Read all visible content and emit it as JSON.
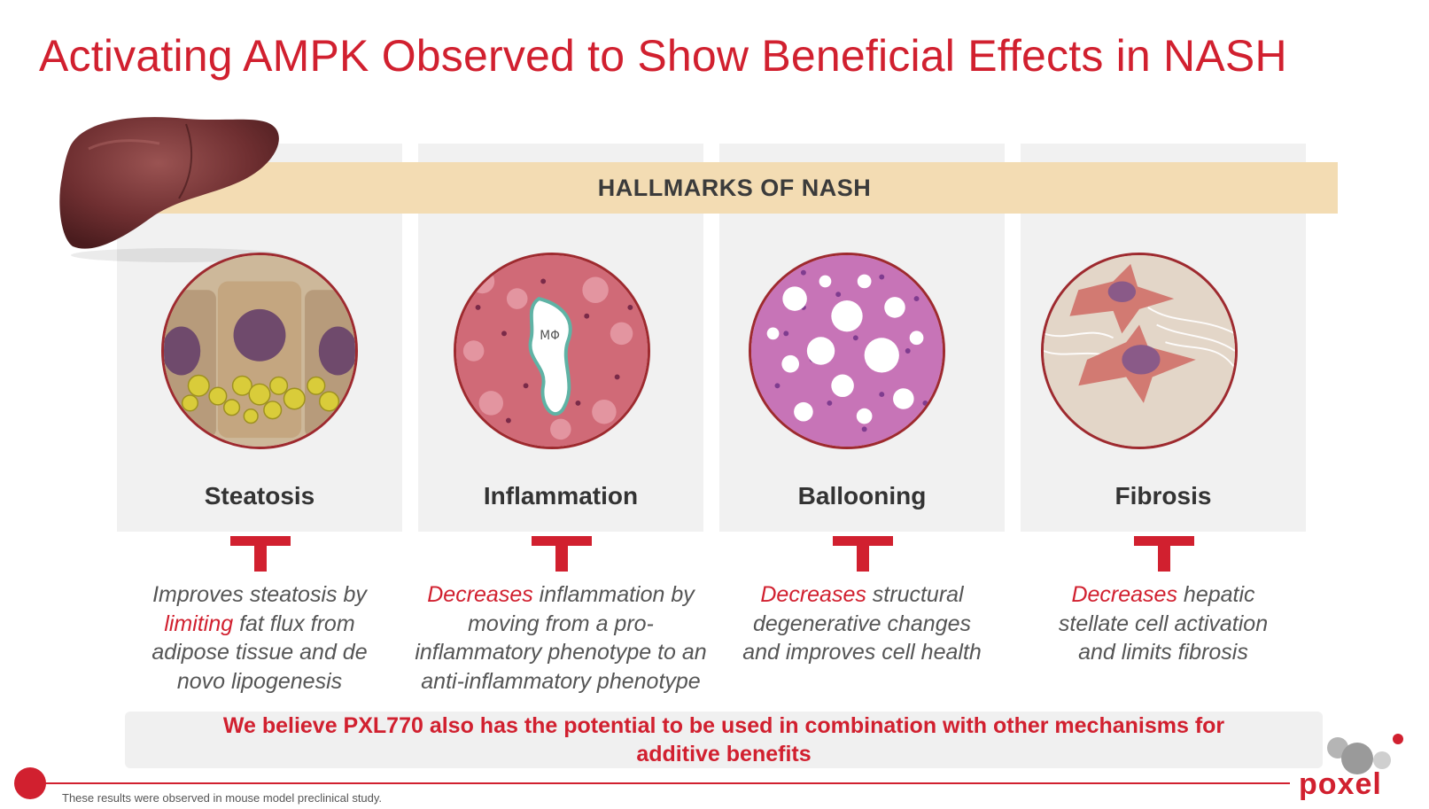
{
  "title": "Activating AMPK Observed to Show Beneficial Effects in NASH",
  "band_label": "HALLMARKS OF NASH",
  "hallmarks": [
    {
      "label": "Steatosis",
      "desc_lines": [
        [
          {
            "text": "Improves steatosis by",
            "hl": false
          }
        ],
        [
          {
            "text": "limiting",
            "hl": true
          },
          {
            "text": " fat flux from",
            "hl": false
          }
        ],
        [
          {
            "text": "adipose tissue and de",
            "hl": false
          }
        ],
        [
          {
            "text": "novo lipogenesis",
            "hl": false
          }
        ]
      ]
    },
    {
      "label": "Inflammation",
      "image_label": "MΦ",
      "desc_lines": [
        [
          {
            "text": "Decreases",
            "hl": true
          },
          {
            "text": " inflammation by",
            "hl": false
          }
        ],
        [
          {
            "text": "moving from a pro-",
            "hl": false
          }
        ],
        [
          {
            "text": "inflammatory phenotype to an",
            "hl": false
          }
        ],
        [
          {
            "text": "anti-inflammatory phenotype",
            "hl": false
          }
        ]
      ]
    },
    {
      "label": "Ballooning",
      "desc_lines": [
        [
          {
            "text": "Decreases",
            "hl": true
          },
          {
            "text": " structural",
            "hl": false
          }
        ],
        [
          {
            "text": "degenerative changes",
            "hl": false
          }
        ],
        [
          {
            "text": "and improves cell health",
            "hl": false
          }
        ]
      ]
    },
    {
      "label": "Fibrosis",
      "desc_lines": [
        [
          {
            "text": "Decreases",
            "hl": true
          },
          {
            "text": " hepatic",
            "hl": false
          }
        ],
        [
          {
            "text": "stellate cell activation",
            "hl": false
          }
        ],
        [
          {
            "text": "and limits fibrosis",
            "hl": false
          }
        ]
      ]
    }
  ],
  "note_lines": [
    "We believe PXL770 also has the potential to be used in combination with other mechanisms for",
    "additive benefits"
  ],
  "footnote": "These results were observed in mouse model preclinical study.",
  "logo_text": "poxel",
  "colors": {
    "accent": "#d1202f",
    "band": "#f3dcb3",
    "panel": "#f1f1f1"
  }
}
